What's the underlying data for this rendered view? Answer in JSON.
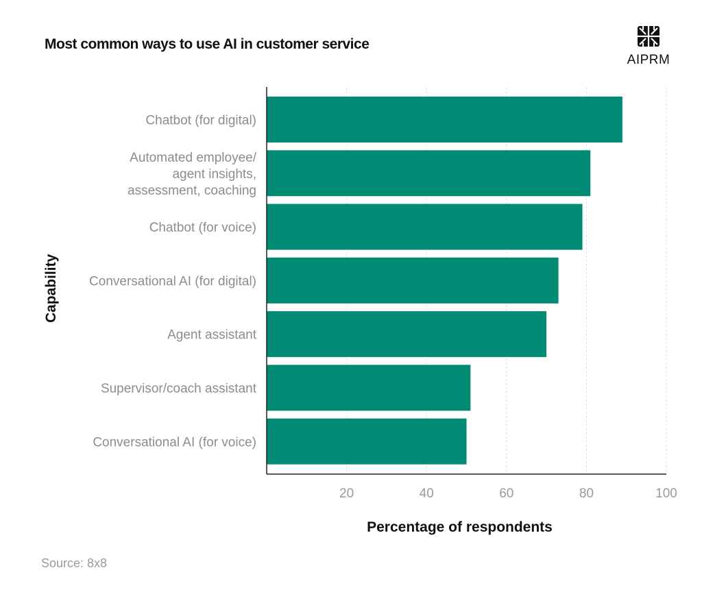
{
  "title": "Most common ways to use AI in customer service",
  "source": "Source: 8x8",
  "logo": {
    "name": "AIPRM",
    "icon": "aiprm-logo-icon"
  },
  "colors": {
    "bar": "#018a74",
    "grid": "#dcdcdc",
    "axis": "#222222"
  },
  "chart_data": {
    "type": "bar",
    "orientation": "horizontal",
    "categories": [
      [
        "Chatbot (for digital)"
      ],
      [
        "Automated employee/",
        "agent insights,",
        "assessment, coaching"
      ],
      [
        "Chatbot (for voice)"
      ],
      [
        "Conversational AI (for digital)"
      ],
      [
        "Agent assistant"
      ],
      [
        "Supervisor/coach assistant"
      ],
      [
        "Conversational AI (for voice)"
      ]
    ],
    "values": [
      89,
      81,
      79,
      73,
      70,
      51,
      50
    ],
    "xlabel": "Percentage of respondents",
    "ylabel": "Capability",
    "xticks": [
      20,
      40,
      60,
      80,
      100
    ],
    "xlim": [
      0,
      100
    ],
    "grid": "vertical-dashed"
  }
}
